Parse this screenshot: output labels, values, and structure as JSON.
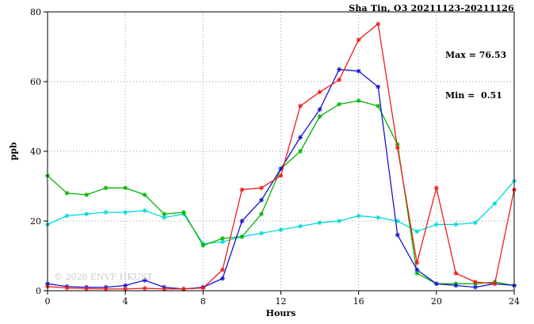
{
  "header": {
    "title": "Sha Tin, O3 20211123-20211126"
  },
  "annotation": {
    "max": "Max = 76.53",
    "min": "Min =  0.51"
  },
  "watermark": "© 2026 ENVF HKUST",
  "chart_data": {
    "type": "line",
    "title": "Sha Tin, O3 20211123-20211126",
    "xlabel": "Hours",
    "ylabel": "ppb",
    "xlim": [
      0,
      24
    ],
    "ylim": [
      0,
      80
    ],
    "x_major_ticks": [
      0,
      4,
      8,
      12,
      16,
      20,
      24
    ],
    "y_major_ticks": [
      0,
      20,
      40,
      60,
      80
    ],
    "grid": true,
    "legend": "none",
    "marker": "asterisk",
    "annotations": [
      "Max = 76.53",
      "Min =  0.51"
    ],
    "x": [
      0,
      1,
      2,
      3,
      4,
      5,
      6,
      7,
      8,
      9,
      10,
      11,
      12,
      13,
      14,
      15,
      16,
      17,
      18,
      19,
      20,
      21,
      22,
      23,
      24
    ],
    "series": [
      {
        "name": "cyan",
        "color": "#00d8d8",
        "values": [
          19,
          21.5,
          22,
          22.5,
          22.5,
          23,
          21,
          22,
          13.5,
          14,
          15.5,
          16.5,
          17.5,
          18.5,
          19.5,
          20,
          21.5,
          21,
          20,
          17,
          19,
          19,
          19.5,
          25,
          31.5
        ]
      },
      {
        "name": "green",
        "color": "#00b400",
        "values": [
          33,
          28,
          27.5,
          29.5,
          29.5,
          27.5,
          22,
          22.5,
          13,
          15,
          15.5,
          22,
          35,
          40,
          50,
          53.5,
          54.5,
          53,
          42,
          5,
          2,
          2,
          2,
          2.5,
          1.5
        ]
      },
      {
        "name": "blue",
        "color": "#1414cc",
        "values": [
          2,
          1.2,
          1,
          1,
          1.5,
          3,
          1,
          0.5,
          1,
          3.5,
          20,
          26,
          35,
          44,
          52,
          63.5,
          63,
          58.5,
          16,
          6,
          2,
          1.5,
          1,
          2,
          1.5
        ]
      },
      {
        "name": "red",
        "color": "#ee1c1c",
        "values": [
          1.2,
          0.8,
          0.6,
          0.51,
          0.51,
          0.7,
          0.51,
          0.51,
          0.8,
          6,
          29,
          29.5,
          33,
          53,
          57,
          60.5,
          72,
          76.53,
          41,
          8,
          29.5,
          5,
          2.5,
          2,
          29
        ]
      }
    ]
  }
}
